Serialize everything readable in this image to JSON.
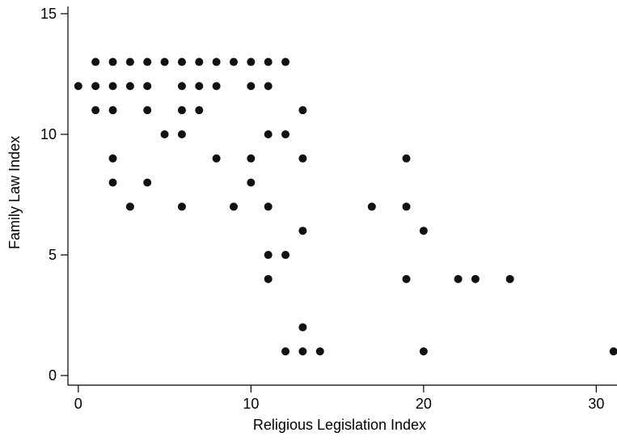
{
  "chart_data": {
    "type": "scatter",
    "title": "",
    "xlabel": "Religious Legislation Index",
    "ylabel": "Family Law Index",
    "xlim": [
      -0.6,
      31.2
    ],
    "ylim": [
      -0.4,
      15.3
    ],
    "xticks": [
      0,
      10,
      20,
      30
    ],
    "yticks": [
      0,
      5,
      10,
      15
    ],
    "grid": false,
    "legend": "none",
    "marker_color": "#111111",
    "points": [
      {
        "x": 0,
        "y": 12
      },
      {
        "x": 1,
        "y": 13
      },
      {
        "x": 1,
        "y": 12
      },
      {
        "x": 1,
        "y": 11
      },
      {
        "x": 2,
        "y": 13
      },
      {
        "x": 2,
        "y": 12
      },
      {
        "x": 2,
        "y": 11
      },
      {
        "x": 2,
        "y": 9
      },
      {
        "x": 2,
        "y": 8
      },
      {
        "x": 3,
        "y": 13
      },
      {
        "x": 3,
        "y": 12
      },
      {
        "x": 3,
        "y": 7
      },
      {
        "x": 4,
        "y": 13
      },
      {
        "x": 4,
        "y": 12
      },
      {
        "x": 4,
        "y": 11
      },
      {
        "x": 4,
        "y": 8
      },
      {
        "x": 5,
        "y": 13
      },
      {
        "x": 5,
        "y": 10
      },
      {
        "x": 6,
        "y": 13
      },
      {
        "x": 6,
        "y": 12
      },
      {
        "x": 6,
        "y": 11
      },
      {
        "x": 6,
        "y": 10
      },
      {
        "x": 6,
        "y": 7
      },
      {
        "x": 7,
        "y": 13
      },
      {
        "x": 7,
        "y": 12
      },
      {
        "x": 7,
        "y": 11
      },
      {
        "x": 8,
        "y": 13
      },
      {
        "x": 8,
        "y": 12
      },
      {
        "x": 8,
        "y": 9
      },
      {
        "x": 9,
        "y": 13
      },
      {
        "x": 9,
        "y": 7
      },
      {
        "x": 10,
        "y": 13
      },
      {
        "x": 10,
        "y": 12
      },
      {
        "x": 10,
        "y": 9
      },
      {
        "x": 10,
        "y": 8
      },
      {
        "x": 11,
        "y": 13
      },
      {
        "x": 11,
        "y": 12
      },
      {
        "x": 11,
        "y": 10
      },
      {
        "x": 11,
        "y": 7
      },
      {
        "x": 11,
        "y": 5
      },
      {
        "x": 11,
        "y": 4
      },
      {
        "x": 12,
        "y": 13
      },
      {
        "x": 12,
        "y": 10
      },
      {
        "x": 12,
        "y": 5
      },
      {
        "x": 12,
        "y": 1
      },
      {
        "x": 13,
        "y": 11
      },
      {
        "x": 13,
        "y": 9
      },
      {
        "x": 13,
        "y": 6
      },
      {
        "x": 13,
        "y": 2
      },
      {
        "x": 13,
        "y": 1
      },
      {
        "x": 14,
        "y": 1
      },
      {
        "x": 17,
        "y": 7
      },
      {
        "x": 19,
        "y": 9
      },
      {
        "x": 19,
        "y": 7
      },
      {
        "x": 19,
        "y": 4
      },
      {
        "x": 20,
        "y": 6
      },
      {
        "x": 20,
        "y": 1
      },
      {
        "x": 22,
        "y": 4
      },
      {
        "x": 23,
        "y": 4
      },
      {
        "x": 25,
        "y": 4
      },
      {
        "x": 31,
        "y": 1
      }
    ]
  }
}
